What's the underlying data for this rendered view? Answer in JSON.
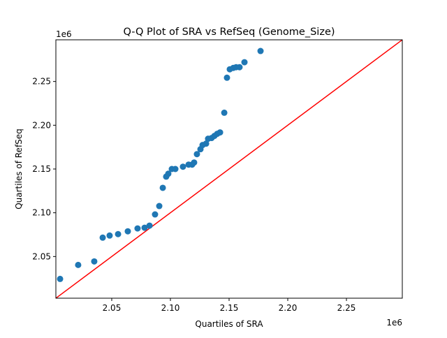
{
  "chart_data": {
    "type": "scatter",
    "title": "Q-Q Plot of SRA vs RefSeq (Genome_Size)",
    "xlabel": "Quartiles of SRA",
    "ylabel": "Quartiles of RefSeq",
    "x_offset_label": "1e6",
    "y_offset_label": "1e6",
    "xlim": [
      2.0024,
      2.2976
    ],
    "ylim": [
      2.0024,
      2.2976
    ],
    "xticks": [
      2.05,
      2.1,
      2.15,
      2.2,
      2.25
    ],
    "xtick_labels": [
      "2.05",
      "2.10",
      "2.15",
      "2.20",
      "2.25"
    ],
    "yticks": [
      2.05,
      2.1,
      2.15,
      2.2,
      2.25
    ],
    "ytick_labels": [
      "2.05",
      "2.10",
      "2.15",
      "2.20",
      "2.25"
    ],
    "grid": false,
    "point_color": "#1f77b4",
    "reference_line": {
      "type": "y=x",
      "color": "#ff0000"
    },
    "x": [
      2.006,
      2.0214,
      2.0351,
      2.0423,
      2.0482,
      2.0554,
      2.0637,
      2.072,
      2.078,
      2.0822,
      2.0869,
      2.0905,
      2.0935,
      2.0964,
      2.0982,
      2.1012,
      2.1042,
      2.1107,
      2.1155,
      2.1185,
      2.1202,
      2.1226,
      2.1256,
      2.1274,
      2.1304,
      2.1321,
      2.1351,
      2.1375,
      2.1399,
      2.1423,
      2.1459,
      2.1482,
      2.1506,
      2.1536,
      2.156,
      2.1589,
      2.1631,
      2.1768
    ],
    "y": [
      2.0244,
      2.0404,
      2.0444,
      2.0716,
      2.074,
      2.0756,
      2.0788,
      2.0821,
      2.0829,
      2.0853,
      2.0981,
      2.1077,
      2.1285,
      2.1413,
      2.1446,
      2.15,
      2.15,
      2.1526,
      2.155,
      2.155,
      2.1574,
      2.167,
      2.1726,
      2.1774,
      2.179,
      2.1846,
      2.1854,
      2.1878,
      2.1902,
      2.1918,
      2.2143,
      2.2543,
      2.2639,
      2.2655,
      2.2663,
      2.2663,
      2.272,
      2.2848
    ]
  }
}
